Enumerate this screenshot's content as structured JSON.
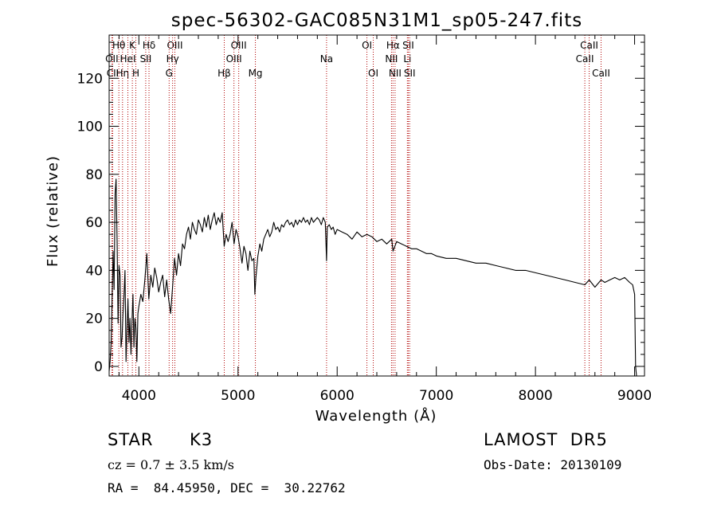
{
  "chart_data": {
    "type": "line",
    "title": "spec-56302-GAC085N31M1_sp05-247.fits",
    "xlabel": "Wavelength (Å)",
    "ylabel": "Flux (relative)",
    "xlim": [
      3700,
      9100
    ],
    "ylim": [
      -4,
      138
    ],
    "xticks": [
      4000,
      5000,
      6000,
      7000,
      8000,
      9000
    ],
    "yticks": [
      0,
      20,
      40,
      60,
      80,
      100,
      120
    ],
    "grid": false,
    "series": [
      {
        "x": [
          3700,
          3710,
          3720,
          3730,
          3740,
          3750,
          3760,
          3770,
          3780,
          3790,
          3800,
          3810,
          3820,
          3830,
          3840,
          3850,
          3860,
          3870,
          3880,
          3890,
          3900,
          3910,
          3920,
          3930,
          3940,
          3950,
          3960,
          3970,
          3980,
          3990,
          4000,
          4020,
          4040,
          4060,
          4080,
          4100,
          4120,
          4140,
          4160,
          4180,
          4200,
          4220,
          4240,
          4260,
          4280,
          4300,
          4320,
          4340,
          4360,
          4380,
          4400,
          4420,
          4440,
          4460,
          4480,
          4500,
          4520,
          4540,
          4560,
          4580,
          4600,
          4620,
          4640,
          4660,
          4680,
          4700,
          4720,
          4740,
          4760,
          4780,
          4800,
          4820,
          4840,
          4860,
          4880,
          4900,
          4920,
          4940,
          4960,
          4980,
          5000,
          5020,
          5040,
          5060,
          5080,
          5100,
          5120,
          5140,
          5160,
          5170,
          5180,
          5200,
          5220,
          5240,
          5260,
          5280,
          5300,
          5320,
          5340,
          5360,
          5380,
          5400,
          5420,
          5440,
          5460,
          5480,
          5500,
          5520,
          5540,
          5560,
          5580,
          5600,
          5620,
          5640,
          5660,
          5680,
          5700,
          5720,
          5740,
          5760,
          5780,
          5800,
          5820,
          5840,
          5860,
          5880,
          5893,
          5900,
          5920,
          5940,
          5960,
          5980,
          6000,
          6050,
          6100,
          6150,
          6200,
          6250,
          6300,
          6350,
          6400,
          6450,
          6500,
          6550,
          6563,
          6600,
          6650,
          6700,
          6750,
          6800,
          6850,
          6900,
          6950,
          7000,
          7100,
          7200,
          7300,
          7400,
          7500,
          7600,
          7700,
          7800,
          7900,
          8000,
          8100,
          8200,
          8300,
          8400,
          8498,
          8542,
          8600,
          8662,
          8700,
          8750,
          8800,
          8850,
          8900,
          8950,
          8980,
          9000,
          9010,
          9020
        ],
        "y": [
          -2,
          2,
          10,
          28,
          48,
          32,
          72,
          78,
          52,
          18,
          42,
          38,
          8,
          12,
          22,
          30,
          40,
          2,
          15,
          28,
          10,
          20,
          5,
          18,
          30,
          8,
          20,
          16,
          2,
          22,
          25,
          30,
          27,
          36,
          47,
          28,
          38,
          33,
          41,
          37,
          31,
          35,
          38,
          29,
          36,
          28,
          22,
          33,
          45,
          38,
          47,
          42,
          51,
          49,
          55,
          58,
          53,
          60,
          57,
          55,
          61,
          59,
          56,
          62,
          58,
          63,
          57,
          61,
          64,
          59,
          62,
          60,
          64,
          50,
          55,
          52,
          55,
          60,
          51,
          57,
          54,
          49,
          43,
          50,
          47,
          40,
          48,
          44,
          45,
          30,
          37,
          46,
          51,
          48,
          53,
          55,
          57,
          54,
          56,
          60,
          57,
          58,
          56,
          59,
          58,
          60,
          61,
          59,
          60,
          58,
          61,
          59,
          61,
          60,
          62,
          60,
          61,
          59,
          62,
          60,
          61,
          62,
          61,
          59,
          62,
          60,
          44,
          58,
          59,
          57,
          58,
          55,
          57,
          56,
          55,
          53,
          56,
          54,
          55,
          54,
          52,
          53,
          51,
          53,
          48,
          52,
          51,
          50,
          49,
          49,
          48,
          47,
          47,
          46,
          45,
          45,
          44,
          43,
          43,
          42,
          41,
          40,
          40,
          39,
          38,
          37,
          36,
          35,
          34,
          36,
          33,
          36,
          35,
          36,
          37,
          36,
          37,
          35,
          34,
          30,
          0,
          -5
        ]
      }
    ],
    "lines": [
      {
        "label": "Hθ",
        "x": 3798,
        "row": 1
      },
      {
        "label": "OII",
        "x": 3727,
        "row": 2
      },
      {
        "label": "CII",
        "x": 3736,
        "row": 3
      },
      {
        "label": "Hη",
        "x": 3835,
        "row": 3
      },
      {
        "label": "K",
        "x": 3934,
        "row": 1
      },
      {
        "label": "HeI",
        "x": 3889,
        "row": 2
      },
      {
        "label": "H",
        "x": 3969,
        "row": 3
      },
      {
        "label": "Hδ",
        "x": 4102,
        "row": 1
      },
      {
        "label": "SII",
        "x": 4069,
        "row": 2
      },
      {
        "label": "OIII",
        "x": 4363,
        "row": 1
      },
      {
        "label": "Hγ",
        "x": 4340,
        "row": 2
      },
      {
        "label": "G",
        "x": 4305,
        "row": 3
      },
      {
        "label": "Hβ",
        "x": 4861,
        "row": 3
      },
      {
        "label": "OIII",
        "x": 5007,
        "row": 1
      },
      {
        "label": "OIII",
        "x": 4959,
        "row": 2
      },
      {
        "label": "Mg",
        "x": 5175,
        "row": 3
      },
      {
        "label": "Na",
        "x": 5893,
        "row": 2
      },
      {
        "label": "OI",
        "x": 6300,
        "row": 1
      },
      {
        "label": "OI",
        "x": 6364,
        "row": 3
      },
      {
        "label": "Hα",
        "x": 6563,
        "row": 1
      },
      {
        "label": "NII",
        "x": 6548,
        "row": 2
      },
      {
        "label": "NII",
        "x": 6584,
        "row": 3
      },
      {
        "label": "SII",
        "x": 6717,
        "row": 1
      },
      {
        "label": "Li",
        "x": 6708,
        "row": 2
      },
      {
        "label": "SII",
        "x": 6731,
        "row": 3
      },
      {
        "label": "CaII",
        "x": 8542,
        "row": 1
      },
      {
        "label": "CaII",
        "x": 8498,
        "row": 2
      },
      {
        "label": "CaII",
        "x": 8662,
        "row": 3
      }
    ]
  },
  "info": {
    "class": "STAR",
    "subclass": "K3",
    "survey": "LAMOST  DR5",
    "redshift": "cz = 0.7 ± 3.5 km/s",
    "obs_date": "Obs-Date: 20130109",
    "coords": "RA =  84.45950, DEC =  30.22762"
  }
}
